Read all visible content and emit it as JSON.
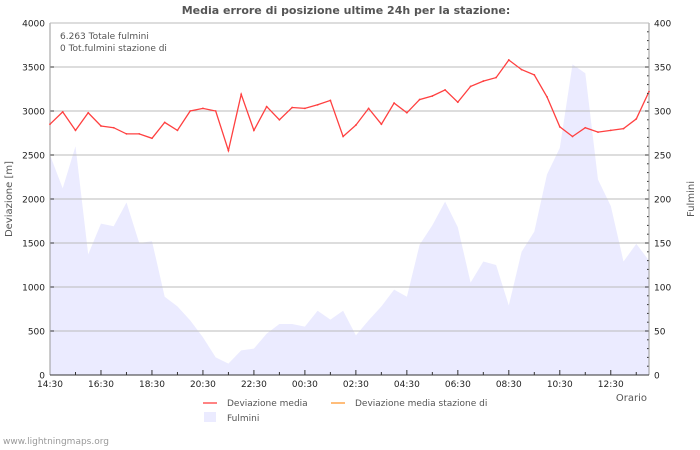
{
  "chart_data": {
    "type": "line",
    "title": "Media errore di posizione ultime 24h per la stazione:",
    "annotations": [
      "6.263 Totale fulmini",
      "0 Tot.fulmini stazione di"
    ],
    "xlabel": "Orario",
    "ylabel": "Deviazione  [m]",
    "y2label": "Fulmini",
    "ylim": [
      0,
      4000
    ],
    "y2lim": [
      0,
      400
    ],
    "yticks": [
      "0",
      "500",
      "1000",
      "1500",
      "2000",
      "2500",
      "3000",
      "3500",
      "4000"
    ],
    "y2ticks": [
      "0",
      "50",
      "100",
      "150",
      "200",
      "250",
      "300",
      "350",
      "400"
    ],
    "xtick_labels": [
      "14:30",
      "16:30",
      "18:30",
      "20:30",
      "22:30",
      "00:30",
      "02:30",
      "04:30",
      "06:30",
      "08:30",
      "10:30",
      "12:30"
    ],
    "grid": true,
    "legend_placement": "bottom",
    "series": [
      {
        "name": "Deviazione media",
        "type": "line",
        "axis": "left",
        "color": "#ff4040",
        "values": [
          2850,
          2990,
          2780,
          2980,
          2830,
          2810,
          2740,
          2740,
          2690,
          2870,
          2780,
          3000,
          3030,
          3000,
          2550,
          3190,
          2780,
          3050,
          2900,
          3040,
          3030,
          3070,
          3120,
          2710,
          2840,
          3030,
          2850,
          3090,
          2980,
          3130,
          3170,
          3240,
          3100,
          3280,
          3340,
          3380,
          3580,
          3470,
          3410,
          3160,
          2820,
          2710,
          2810,
          2760,
          2780,
          2800,
          2910,
          3220
        ]
      },
      {
        "name": "Deviazione media stazione di",
        "type": "line",
        "axis": "left",
        "color": "#ff9933",
        "values": []
      },
      {
        "name": "Fulmini",
        "type": "area",
        "axis": "right",
        "color": "#ebebff",
        "values": [
          250,
          212,
          260,
          137,
          172,
          169,
          196,
          150,
          152,
          89,
          78,
          62,
          43,
          20,
          13,
          28,
          30,
          47,
          58,
          58,
          55,
          73,
          63,
          73,
          45,
          62,
          78,
          97,
          89,
          148,
          170,
          197,
          168,
          105,
          129,
          125,
          79,
          140,
          163,
          228,
          258,
          353,
          343,
          222,
          192,
          129,
          149,
          130
        ]
      }
    ]
  },
  "footer": "www.lightningmaps.org"
}
